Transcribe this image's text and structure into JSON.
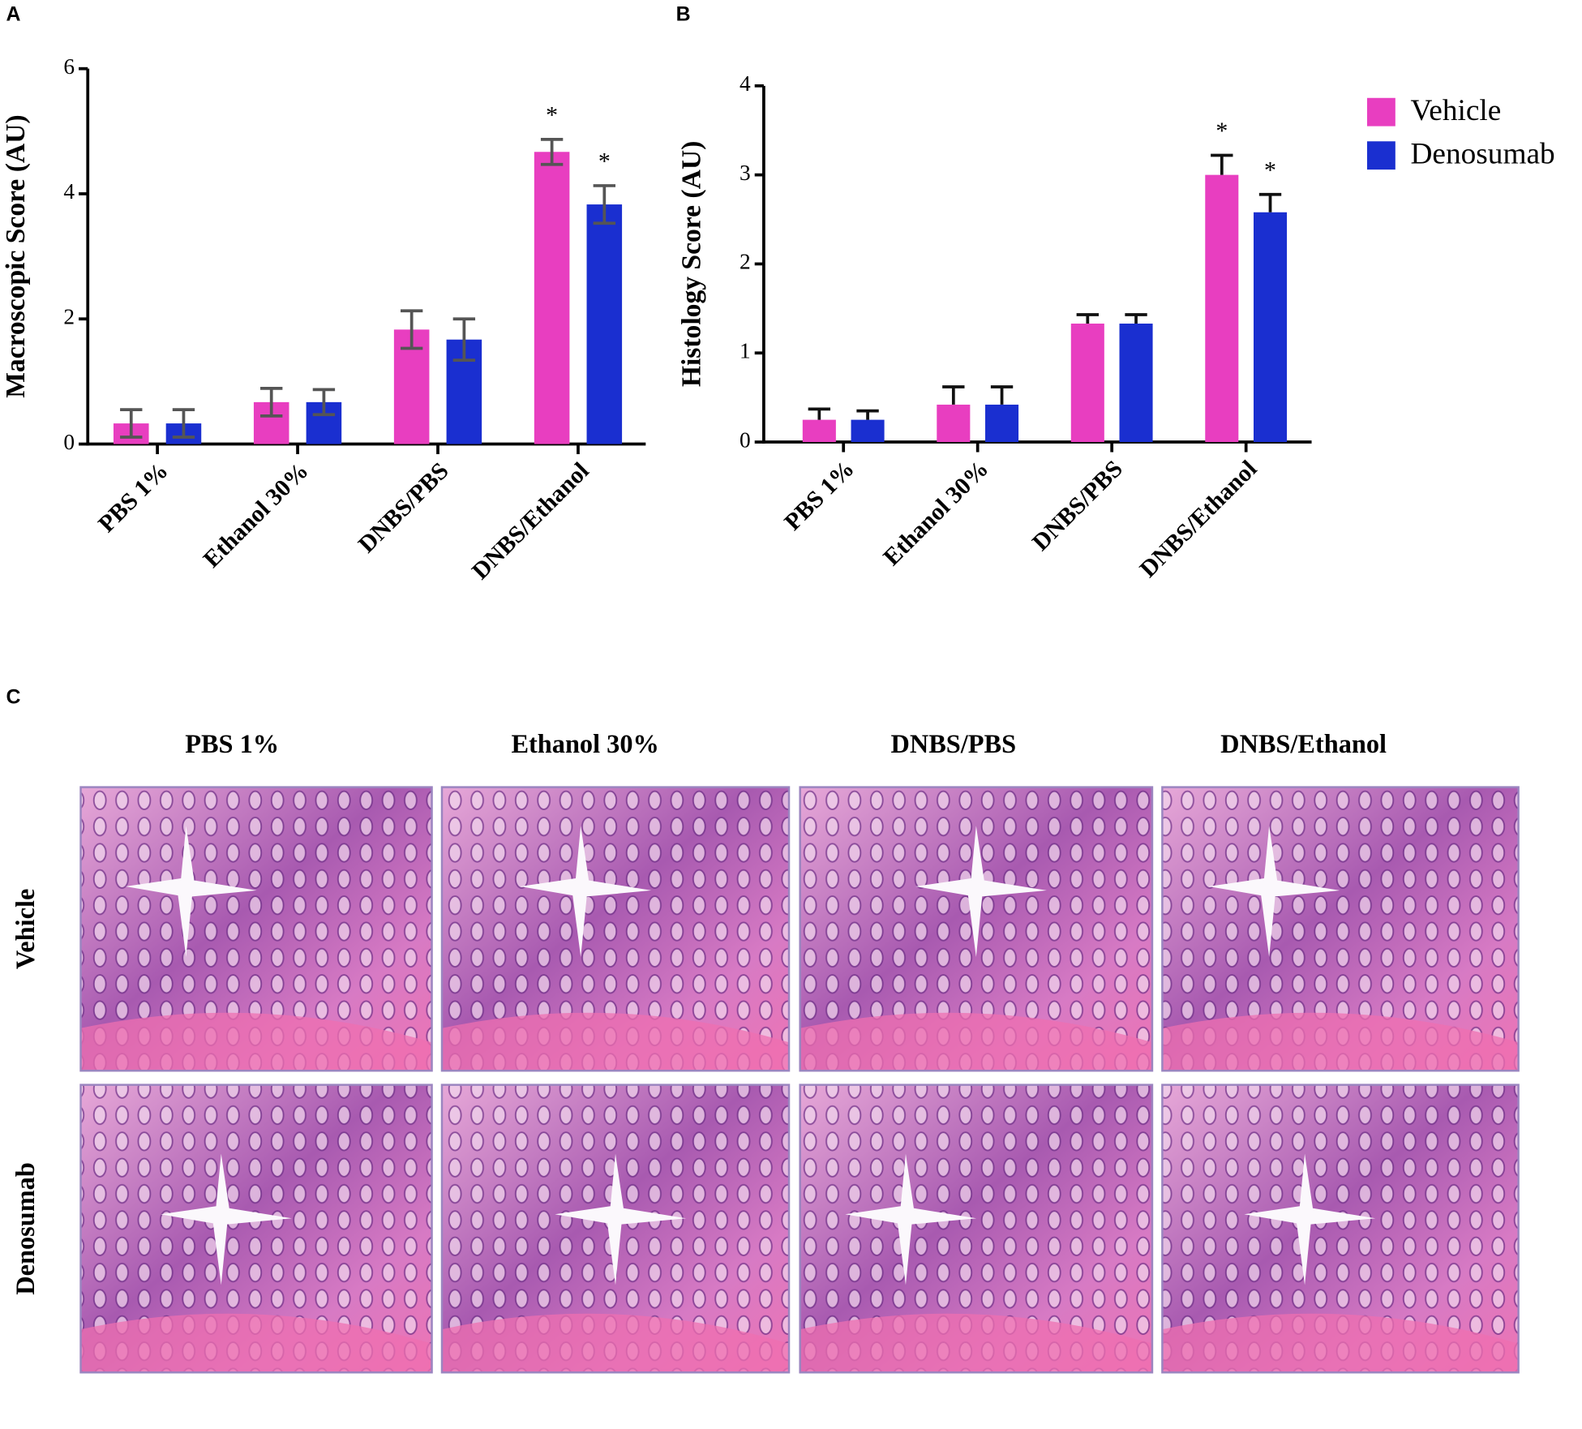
{
  "chart_data": [
    {
      "type": "bar",
      "label": "A",
      "ylabel": "Macroscopic Score (AU)",
      "categories": [
        "PBS 1%",
        "Ethanol 30%",
        "DNBS/PBS",
        "DNBS/Ethanol"
      ],
      "ylim": [
        0,
        6
      ],
      "yticks": [
        0,
        2,
        4,
        6
      ],
      "error_bars": "both",
      "error_color": "#555555",
      "series": [
        {
          "name": "Vehicle",
          "color": "#e83ec0",
          "values": [
            0.33,
            0.67,
            1.83,
            4.67
          ],
          "errors": [
            0.22,
            0.22,
            0.3,
            0.2
          ],
          "annotations": [
            null,
            null,
            null,
            "*"
          ]
        },
        {
          "name": "Denosumab",
          "color": "#1a2fd0",
          "values": [
            0.33,
            0.67,
            1.67,
            3.83
          ],
          "errors": [
            0.22,
            0.2,
            0.33,
            0.3
          ],
          "annotations": [
            null,
            null,
            null,
            "*"
          ]
        }
      ]
    },
    {
      "type": "bar",
      "label": "B",
      "ylabel": "Histology Score (AU)",
      "categories": [
        "PBS 1%",
        "Ethanol 30%",
        "DNBS/PBS",
        "DNBS/Ethanol"
      ],
      "ylim": [
        0,
        4
      ],
      "yticks": [
        0,
        1,
        2,
        3,
        4
      ],
      "error_bars": "up",
      "error_color": "#111111",
      "legend": "top-right",
      "series": [
        {
          "name": "Vehicle",
          "color": "#e83ec0",
          "values": [
            0.25,
            0.42,
            1.33,
            3.0
          ],
          "errors": [
            0.12,
            0.2,
            0.1,
            0.22
          ],
          "annotations": [
            null,
            null,
            null,
            "*"
          ]
        },
        {
          "name": "Denosumab",
          "color": "#1a2fd0",
          "values": [
            0.25,
            0.42,
            1.33,
            2.58
          ],
          "errors": [
            0.1,
            0.2,
            0.1,
            0.2
          ],
          "annotations": [
            null,
            null,
            null,
            "*"
          ]
        }
      ]
    }
  ],
  "panel_c": {
    "label": "C",
    "columns": [
      "PBS 1%",
      "Ethanol 30%",
      "DNBS/PBS",
      "DNBS/Ethanol"
    ],
    "rows": [
      "Vehicle",
      "Denosumab"
    ]
  }
}
